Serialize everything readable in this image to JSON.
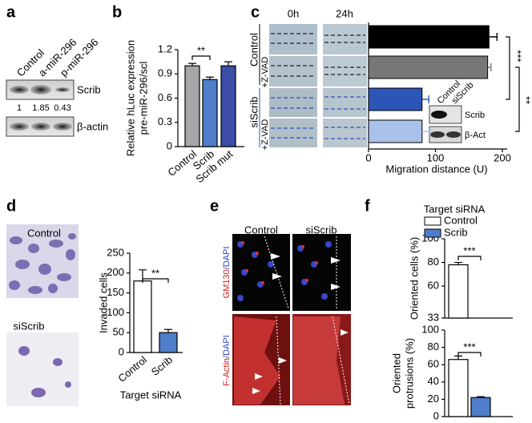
{
  "panel_labels": [
    "a",
    "b",
    "c",
    "d",
    "e",
    "f"
  ],
  "a": {
    "lanes": [
      "Control",
      "a-miR-296",
      "p-miR-296"
    ],
    "blots": [
      "Scrib",
      "β-actin"
    ],
    "quantification": [
      1,
      1.85,
      0.43
    ]
  },
  "c_images": {
    "times": [
      "0h",
      "24h"
    ],
    "rows": [
      "Control",
      "+Z-VAD",
      "siScrib",
      "+Z-VAD"
    ],
    "inset": {
      "lanes": [
        "Control",
        "siScrib"
      ],
      "blots": [
        "Scrib",
        "β-Act"
      ]
    }
  },
  "d_images": [
    "Control",
    "siScrib"
  ],
  "e": {
    "columns": [
      "Control",
      "siScrib"
    ],
    "rows": [
      [
        "GM130",
        "/DAPI"
      ],
      [
        "F-Actin",
        "/DAPI"
      ]
    ]
  },
  "chart_data": [
    {
      "type": "bar",
      "ylabel": [
        "Relative hLuc expression",
        "pre-miR-296/scl"
      ],
      "categories": [
        "Control",
        "Scrib",
        "Scrib mut"
      ],
      "values": [
        1.0,
        0.83,
        1.0
      ],
      "errors": [
        0.03,
        0.03,
        0.05
      ],
      "colors": [
        "#a6a6a6",
        "#4f7fcb",
        "#3b4da6"
      ],
      "ylim": [
        0,
        1.2
      ],
      "yticks": [
        0,
        0.3,
        0.6,
        0.9,
        1.2
      ],
      "annotations": [
        "**"
      ]
    },
    {
      "type": "hbar",
      "values": [
        180,
        178,
        80,
        80
      ],
      "errors": [
        12,
        5,
        10,
        12
      ],
      "colors": [
        "#000000",
        "#777777",
        "#2c56b6",
        "#a9c1e9"
      ],
      "xlim": [
        0,
        200
      ],
      "xticks": [
        0,
        100,
        200
      ],
      "xlabel": "Migration distance (U)",
      "annotations": [
        "***",
        "**"
      ]
    },
    {
      "type": "bar",
      "ylabel": [
        "Invaded cells"
      ],
      "xlabel": "Target siRNA",
      "categories": [
        "Control",
        "Scrib"
      ],
      "values": [
        180,
        50
      ],
      "errors": [
        28,
        8
      ],
      "colors": [
        "#ffffff",
        "#4f7fcb"
      ],
      "ylim": [
        0,
        250
      ],
      "yticks": [
        0,
        50,
        100,
        150,
        200,
        250
      ],
      "annotations": [
        "**"
      ]
    },
    {
      "type": "bar",
      "title": "Target siRNA",
      "ylabel": [
        "Oriented cells (%)"
      ],
      "series": [
        {
          "name": "Control",
          "color": "#ffffff",
          "values": [
            78
          ],
          "errors": [
            2
          ]
        },
        {
          "name": "Scrib",
          "color": "#4f7fcb",
          "values": [
            null
          ],
          "errors": [
            null
          ]
        }
      ],
      "ylim": [
        33,
        100
      ],
      "yticks": [
        33,
        60,
        80,
        100
      ],
      "annotations": [
        "***"
      ]
    },
    {
      "type": "bar",
      "ylabel": [
        "Oriented",
        "protrusions (%)"
      ],
      "series": [
        {
          "color": "#ffffff",
          "values": [
            66
          ],
          "errors": [
            4
          ]
        },
        {
          "color": "#4f7fcb",
          "values": [
            22
          ],
          "errors": [
            1
          ]
        }
      ],
      "ylim": [
        0,
        100
      ],
      "yticks": [
        0,
        20,
        40,
        60,
        80,
        100
      ],
      "annotations": [
        "***"
      ]
    }
  ]
}
